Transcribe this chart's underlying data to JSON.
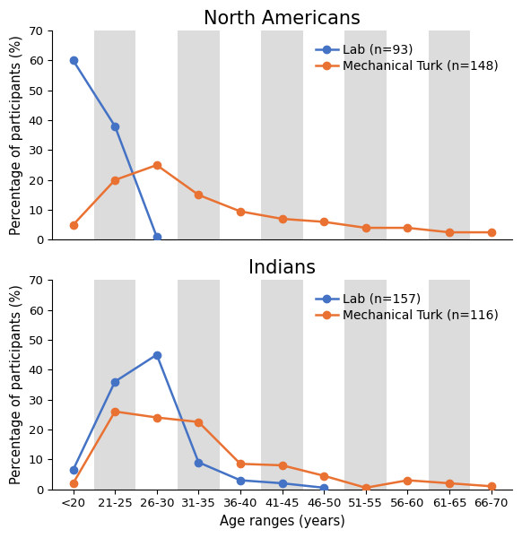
{
  "x_labels": [
    "<20",
    "21-25",
    "26-30",
    "31-35",
    "36-40",
    "41-45",
    "46-50",
    "51-55",
    "56-60",
    "61-65",
    "66-70"
  ],
  "na_lab": [
    60,
    38,
    1,
    null,
    null,
    null,
    null,
    null,
    null,
    null,
    null
  ],
  "na_mturk": [
    5,
    20,
    25,
    15,
    9.5,
    7,
    6,
    4,
    4,
    2.5,
    2.5
  ],
  "india_lab": [
    6.5,
    36,
    45,
    9,
    3,
    2,
    0.5,
    null,
    null,
    null,
    null
  ],
  "india_mturk": [
    2,
    26,
    24,
    22.5,
    8.5,
    8,
    4.5,
    0.5,
    3,
    2,
    1
  ],
  "na_lab_label": "Lab (n=93)",
  "na_mturk_label": "Mechanical Turk (n=148)",
  "india_lab_label": "Lab (n=157)",
  "india_mturk_label": "Mechanical Turk (n=116)",
  "na_title": "North Americans",
  "india_title": "Indians",
  "xlabel": "Age ranges (years)",
  "ylabel": "Percentage of participants (%)",
  "ylim": [
    0,
    70
  ],
  "yticks": [
    0,
    10,
    20,
    30,
    40,
    50,
    60,
    70
  ],
  "lab_color": "#4472C4",
  "mturk_color": "#E97132",
  "bg_stripe_color": "#DCDCDC",
  "title_fontsize": 15,
  "label_fontsize": 10.5,
  "tick_fontsize": 9.5,
  "legend_fontsize": 10,
  "line_width": 1.8,
  "marker_size": 6,
  "stripe_indices": [
    1,
    3,
    5,
    7,
    9
  ]
}
